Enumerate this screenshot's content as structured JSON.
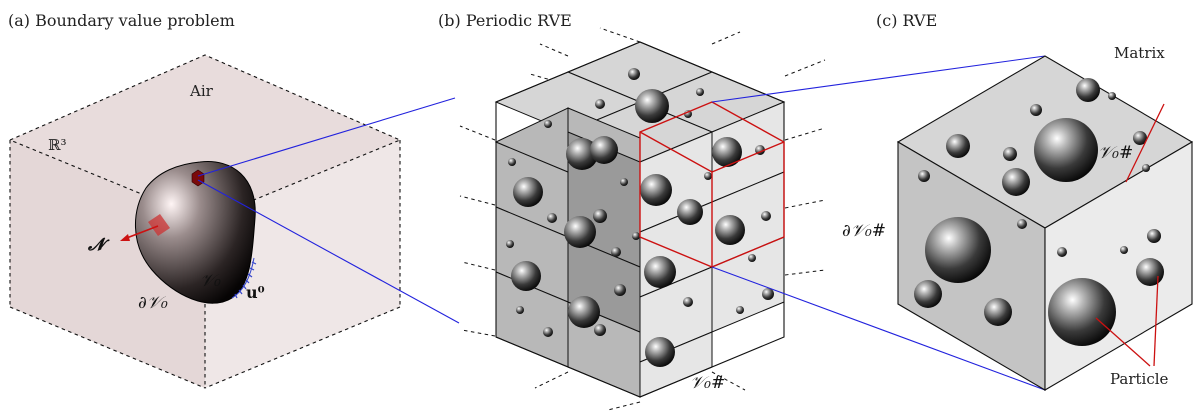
{
  "panels": {
    "a": {
      "caption": "(a) Boundary value problem",
      "air_label": "Air",
      "space_label": "ℝ³",
      "normal_label": "𝓝",
      "boundary_label": "∂𝒱₀",
      "body_label": "𝒱₀",
      "disp_label": "u⁰"
    },
    "b": {
      "caption": "(b) Periodic RVE",
      "cell_label": "𝒱₀#"
    },
    "c": {
      "caption": "(c) RVE",
      "matrix_label": "Matrix",
      "domain_label": "𝒱₀#",
      "boundary_label": "∂𝒱₀#",
      "particle_label": "Particle"
    }
  },
  "colors": {
    "air_face_left": "#e4d7d7",
    "air_face_right": "#efe7e7",
    "cube_top": "#d4d4d4",
    "cube_left": "#c4c4c4",
    "cube_right": "#e9e9e9",
    "link_line": "#2222dd",
    "highlight": "#cc1111"
  }
}
